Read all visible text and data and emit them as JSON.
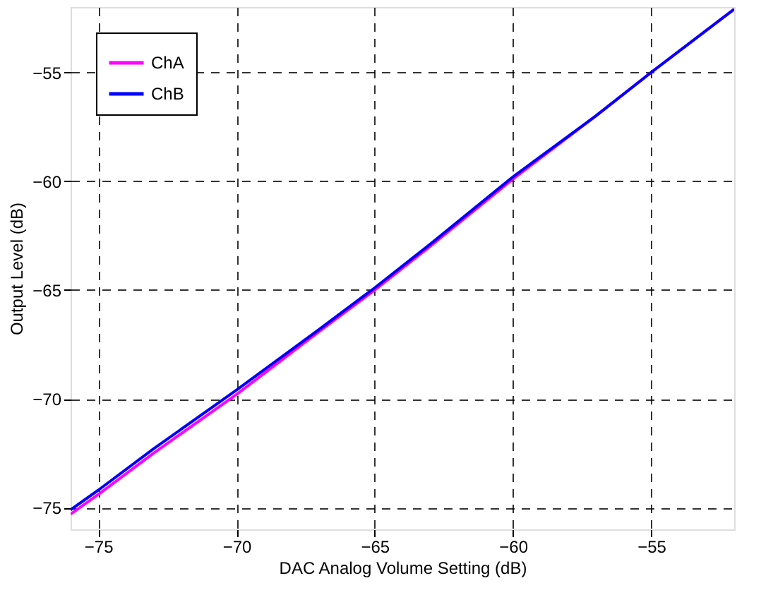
{
  "chart_data": {
    "type": "line",
    "xlabel": "DAC Analog Volume Setting (dB)",
    "ylabel": "Output Level (dB)",
    "x": [
      -76,
      -75,
      -73,
      -70,
      -67,
      -65,
      -63,
      -60,
      -57,
      -55,
      -52
    ],
    "series": [
      {
        "name": "ChA",
        "color": "#ff00ff",
        "values": [
          -75.3,
          -74.4,
          -72.5,
          -69.8,
          -66.9,
          -65.0,
          -63.0,
          -59.9,
          -57.0,
          -55.0,
          -52.1
        ]
      },
      {
        "name": "ChB",
        "color": "#0000ff",
        "values": [
          -75.1,
          -74.2,
          -72.3,
          -69.6,
          -66.8,
          -64.9,
          -62.9,
          -59.8,
          -57.0,
          -55.0,
          -52.1
        ]
      }
    ],
    "xlim": [
      -76,
      -52
    ],
    "ylim": [
      -76,
      -52
    ],
    "xticks": [
      -75,
      -70,
      -65,
      -60,
      -55
    ],
    "yticks": [
      -75,
      -70,
      -65,
      -60,
      -55
    ],
    "grid": true,
    "legend": "top left",
    "line_style": "solid",
    "marker": "none"
  }
}
